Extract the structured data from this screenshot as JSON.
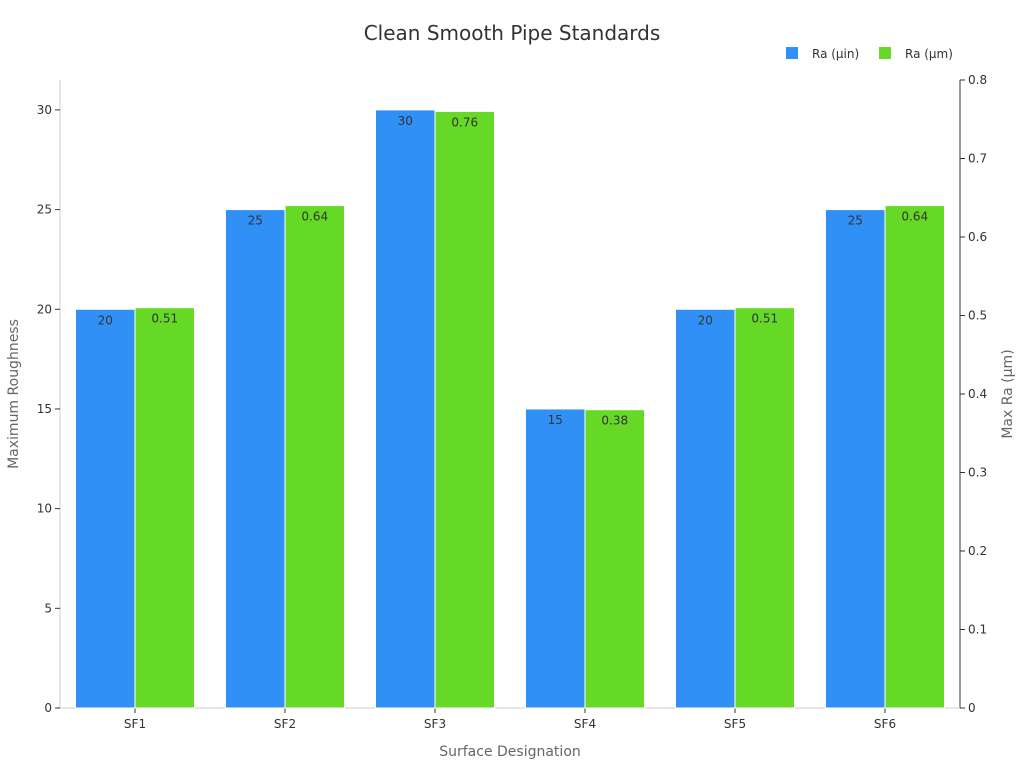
{
  "chart_data": {
    "type": "bar",
    "title": "Clean Smooth Pipe Standards",
    "xlabel": "Surface Designation",
    "ylabel": "Maximum Roughness",
    "y2label": "Max Ra (µm)",
    "categories": [
      "SF1",
      "SF2",
      "SF3",
      "SF4",
      "SF5",
      "SF6"
    ],
    "ylim": [
      0,
      31.5
    ],
    "y2lim": [
      0,
      0.8
    ],
    "yticks": [
      0,
      5,
      10,
      15,
      20,
      25,
      30
    ],
    "y2ticks": [
      0,
      0.1,
      0.2,
      0.3,
      0.4,
      0.5,
      0.6,
      0.7,
      0.8
    ],
    "legend_position": "top-right",
    "series": [
      {
        "name": "Ra (µin)",
        "axis": "left",
        "color": "#3090F5",
        "values": [
          20,
          25,
          30,
          15,
          20,
          25
        ],
        "labels": [
          "20",
          "25",
          "30",
          "15",
          "20",
          "25"
        ]
      },
      {
        "name": "Ra (µm)",
        "axis": "right",
        "color": "#66D926",
        "values": [
          0.51,
          0.64,
          0.76,
          0.38,
          0.51,
          0.64
        ],
        "labels": [
          "0.51",
          "0.64",
          "0.76",
          "0.38",
          "0.51",
          "0.64"
        ]
      }
    ]
  }
}
